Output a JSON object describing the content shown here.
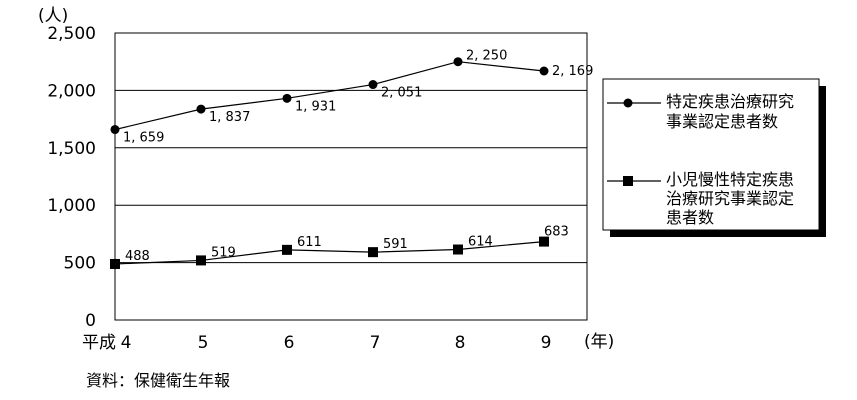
{
  "chart_data": {
    "type": "line",
    "y_unit_label": "(人)",
    "x_unit_label": "(年)",
    "x_prefix": "平成",
    "categories": [
      "4",
      "5",
      "6",
      "7",
      "8",
      "9"
    ],
    "ylim": [
      0,
      2500
    ],
    "yticks": [
      0,
      500,
      1000,
      1500,
      2000,
      2500
    ],
    "ytick_labels": [
      "0",
      "500",
      "1,000",
      "1,500",
      "2,000",
      "2,500"
    ],
    "grid": true,
    "legend_position": "right",
    "series": [
      {
        "name": "特定疾患治療研究事業認定患者数",
        "legend_lines": [
          "特定疾患治療研究",
          "事業認定患者数"
        ],
        "marker": "circle",
        "values": [
          1659,
          1837,
          1931,
          2051,
          2250,
          2169
        ],
        "labels": [
          "1, 659",
          "1, 837",
          "1, 931",
          "2, 051",
          "2, 250",
          "2, 169"
        ]
      },
      {
        "name": "小児慢性特定疾患治療研究事業認定患者数",
        "legend_lines": [
          "小児慢性特定疾患",
          "治療研究事業認定",
          "患者数"
        ],
        "marker": "square",
        "values": [
          488,
          519,
          611,
          591,
          614,
          683
        ],
        "labels": [
          "488",
          "519",
          "611",
          "591",
          "614",
          "683"
        ]
      }
    ]
  },
  "source": "資料：保健衛生年報"
}
